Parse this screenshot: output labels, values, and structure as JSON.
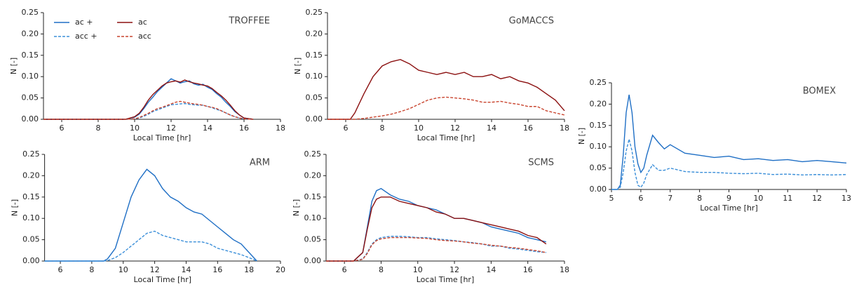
{
  "chart_data": [
    {
      "type": "line",
      "title": "TROFFEE",
      "xlabel": "Local Time [hr]",
      "ylabel": "N [-]",
      "legend": true,
      "xlim": [
        5,
        18
      ],
      "ylim": [
        0,
        0.25
      ],
      "xticks": [
        6,
        8,
        10,
        12,
        14,
        16,
        18
      ],
      "yticks": [
        {
          "value": 0,
          "label": "0.00"
        },
        {
          "value": 0.05,
          "label": "0.05"
        },
        {
          "value": 0.1,
          "label": "0.10"
        },
        {
          "value": 0.15,
          "label": "0.15"
        },
        {
          "value": 0.2,
          "label": "0.20"
        },
        {
          "value": 0.25,
          "label": "0.25"
        }
      ],
      "x": [
        5,
        9.5,
        10,
        10.25,
        10.5,
        10.75,
        11,
        11.25,
        11.5,
        11.75,
        12,
        12.25,
        12.5,
        12.75,
        13,
        13.25,
        13.5,
        13.75,
        14,
        14.25,
        14.5,
        14.75,
        15,
        15.25,
        15.5,
        15.75,
        16,
        16.5
      ],
      "series": [
        {
          "name": "ac +",
          "color": "#1f6fc5",
          "linestyle": "solid",
          "values": [
            0,
            0,
            0.005,
            0.012,
            0.025,
            0.04,
            0.052,
            0.065,
            0.075,
            0.085,
            0.095,
            0.09,
            0.085,
            0.088,
            0.09,
            0.083,
            0.08,
            0.082,
            0.075,
            0.07,
            0.06,
            0.052,
            0.04,
            0.03,
            0.018,
            0.01,
            0.003,
            0
          ]
        },
        {
          "name": "acc +",
          "color": "#3b8fd9",
          "linestyle": "dashed",
          "values": [
            0,
            0,
            0.001,
            0.003,
            0.007,
            0.012,
            0.018,
            0.022,
            0.026,
            0.03,
            0.034,
            0.035,
            0.036,
            0.037,
            0.035,
            0.034,
            0.033,
            0.033,
            0.03,
            0.027,
            0.023,
            0.02,
            0.015,
            0.01,
            0.006,
            0.003,
            0.001,
            0
          ]
        },
        {
          "name": "ac",
          "color": "#8b1010",
          "linestyle": "solid",
          "values": [
            0,
            0,
            0.006,
            0.014,
            0.028,
            0.045,
            0.058,
            0.068,
            0.078,
            0.085,
            0.088,
            0.09,
            0.087,
            0.092,
            0.088,
            0.085,
            0.083,
            0.08,
            0.078,
            0.072,
            0.063,
            0.055,
            0.045,
            0.033,
            0.02,
            0.01,
            0.003,
            0
          ]
        },
        {
          "name": "acc",
          "color": "#c9452f",
          "linestyle": "dashed",
          "values": [
            0,
            0,
            0.001,
            0.004,
            0.009,
            0.014,
            0.02,
            0.025,
            0.028,
            0.032,
            0.036,
            0.04,
            0.042,
            0.04,
            0.038,
            0.036,
            0.035,
            0.033,
            0.03,
            0.028,
            0.025,
            0.02,
            0.015,
            0.01,
            0.006,
            0.003,
            0.001,
            0
          ]
        }
      ]
    },
    {
      "type": "line",
      "title": "GoMACCS",
      "xlabel": "Local Time [hr]",
      "ylabel": "N [-]",
      "legend": false,
      "xlim": [
        5,
        18
      ],
      "ylim": [
        0,
        0.25
      ],
      "xticks": [
        6,
        8,
        10,
        12,
        14,
        16,
        18
      ],
      "yticks": [
        {
          "value": 0,
          "label": "0.00"
        },
        {
          "value": 0.05,
          "label": "0.05"
        },
        {
          "value": 0.1,
          "label": "0.10"
        },
        {
          "value": 0.15,
          "label": "0.15"
        },
        {
          "value": 0.2,
          "label": "0.20"
        },
        {
          "value": 0.25,
          "label": "0.25"
        }
      ],
      "x": [
        5,
        6.25,
        6.5,
        7,
        7.5,
        8,
        8.5,
        9,
        9.5,
        10,
        10.5,
        11,
        11.5,
        12,
        12.5,
        13,
        13.5,
        14,
        14.5,
        15,
        15.5,
        16,
        16.5,
        17,
        17.5,
        18
      ],
      "series": [
        {
          "name": "ac",
          "color": "#8b1010",
          "linestyle": "solid",
          "values": [
            0,
            0,
            0.015,
            0.06,
            0.1,
            0.125,
            0.135,
            0.14,
            0.13,
            0.115,
            0.11,
            0.105,
            0.11,
            0.105,
            0.11,
            0.1,
            0.1,
            0.105,
            0.095,
            0.1,
            0.09,
            0.085,
            0.075,
            0.06,
            0.045,
            0.02
          ]
        },
        {
          "name": "acc",
          "color": "#c9452f",
          "linestyle": "dashed",
          "values": [
            0,
            0,
            0,
            0.002,
            0.005,
            0.008,
            0.012,
            0.018,
            0.025,
            0.035,
            0.045,
            0.05,
            0.052,
            0.05,
            0.048,
            0.045,
            0.04,
            0.04,
            0.042,
            0.038,
            0.035,
            0.03,
            0.03,
            0.02,
            0.015,
            0.01
          ]
        }
      ]
    },
    {
      "type": "line",
      "title": "BOMEX",
      "xlabel": "Local Time [hr]",
      "ylabel": "N [-]",
      "legend": false,
      "xlim": [
        5,
        13
      ],
      "ylim": [
        0,
        0.25
      ],
      "xticks": [
        5,
        6,
        7,
        8,
        9,
        10,
        11,
        12,
        13
      ],
      "yticks": [
        {
          "value": 0,
          "label": "0.00"
        },
        {
          "value": 0.05,
          "label": "0.05"
        },
        {
          "value": 0.1,
          "label": "0.10"
        },
        {
          "value": 0.15,
          "label": "0.15"
        },
        {
          "value": 0.2,
          "label": "0.20"
        },
        {
          "value": 0.25,
          "label": "0.25"
        }
      ],
      "x": [
        5,
        5.2,
        5.3,
        5.4,
        5.5,
        5.6,
        5.7,
        5.8,
        5.9,
        6,
        6.1,
        6.2,
        6.4,
        6.6,
        6.8,
        7,
        7.5,
        8,
        8.5,
        9,
        9.5,
        10,
        10.5,
        11,
        11.5,
        12,
        12.5,
        13
      ],
      "series": [
        {
          "name": "ac +",
          "color": "#1f6fc5",
          "linestyle": "solid",
          "values": [
            0,
            0,
            0.01,
            0.08,
            0.18,
            0.222,
            0.18,
            0.1,
            0.06,
            0.04,
            0.05,
            0.08,
            0.127,
            0.11,
            0.095,
            0.105,
            0.085,
            0.08,
            0.075,
            0.078,
            0.07,
            0.072,
            0.068,
            0.07,
            0.065,
            0.068,
            0.065,
            0.062
          ]
        },
        {
          "name": "acc +",
          "color": "#3b8fd9",
          "linestyle": "dashed",
          "values": [
            0,
            0,
            0.005,
            0.04,
            0.09,
            0.118,
            0.09,
            0.04,
            0.01,
            0.005,
            0.015,
            0.035,
            0.058,
            0.045,
            0.045,
            0.05,
            0.042,
            0.04,
            0.04,
            0.038,
            0.037,
            0.038,
            0.035,
            0.036,
            0.034,
            0.035,
            0.034,
            0.035
          ]
        }
      ]
    },
    {
      "type": "line",
      "title": "ARM",
      "xlabel": "Local Time [hr]",
      "ylabel": "N [-]",
      "legend": false,
      "xlim": [
        5,
        20
      ],
      "ylim": [
        0,
        0.25
      ],
      "xticks": [
        6,
        8,
        10,
        12,
        14,
        16,
        18,
        20
      ],
      "yticks": [
        {
          "value": 0,
          "label": "0.00"
        },
        {
          "value": 0.05,
          "label": "0.05"
        },
        {
          "value": 0.1,
          "label": "0.10"
        },
        {
          "value": 0.15,
          "label": "0.15"
        },
        {
          "value": 0.2,
          "label": "0.20"
        },
        {
          "value": 0.25,
          "label": "0.25"
        }
      ],
      "x": [
        5,
        8.75,
        9,
        9.5,
        10,
        10.5,
        11,
        11.5,
        12,
        12.5,
        13,
        13.5,
        14,
        14.5,
        15,
        15.5,
        16,
        16.5,
        17,
        17.5,
        18,
        18.5
      ],
      "series": [
        {
          "name": "ac +",
          "color": "#1f6fc5",
          "linestyle": "solid",
          "values": [
            0,
            0,
            0.005,
            0.03,
            0.09,
            0.15,
            0.19,
            0.215,
            0.2,
            0.17,
            0.15,
            0.14,
            0.125,
            0.115,
            0.11,
            0.095,
            0.08,
            0.065,
            0.05,
            0.04,
            0.02,
            0
          ]
        },
        {
          "name": "acc +",
          "color": "#3b8fd9",
          "linestyle": "dashed",
          "values": [
            0,
            0,
            0.001,
            0.008,
            0.02,
            0.035,
            0.05,
            0.065,
            0.07,
            0.06,
            0.055,
            0.05,
            0.045,
            0.045,
            0.045,
            0.04,
            0.03,
            0.025,
            0.02,
            0.015,
            0.008,
            0
          ]
        }
      ]
    },
    {
      "type": "line",
      "title": "SCMS",
      "xlabel": "Local Time [hr]",
      "ylabel": "N [-]",
      "legend": false,
      "xlim": [
        5,
        18
      ],
      "ylim": [
        0,
        0.25
      ],
      "xticks": [
        6,
        8,
        10,
        12,
        14,
        16,
        18
      ],
      "yticks": [
        {
          "value": 0,
          "label": "0.00"
        },
        {
          "value": 0.05,
          "label": "0.05"
        },
        {
          "value": 0.1,
          "label": "0.10"
        },
        {
          "value": 0.15,
          "label": "0.15"
        },
        {
          "value": 0.2,
          "label": "0.20"
        },
        {
          "value": 0.25,
          "label": "0.25"
        }
      ],
      "x": [
        5,
        6.5,
        7,
        7.25,
        7.5,
        7.75,
        8,
        8.5,
        9,
        9.5,
        10,
        10.5,
        11,
        11.5,
        12,
        12.5,
        13,
        13.5,
        14,
        14.5,
        15,
        15.5,
        16,
        16.5,
        17
      ],
      "series": [
        {
          "name": "ac +",
          "color": "#1f6fc5",
          "linestyle": "solid",
          "values": [
            0,
            0,
            0.02,
            0.08,
            0.14,
            0.165,
            0.17,
            0.155,
            0.145,
            0.14,
            0.13,
            0.125,
            0.12,
            0.11,
            0.1,
            0.1,
            0.095,
            0.09,
            0.08,
            0.075,
            0.07,
            0.065,
            0.055,
            0.05,
            0.045
          ]
        },
        {
          "name": "acc +",
          "color": "#3b8fd9",
          "linestyle": "dashed",
          "values": [
            0,
            0,
            0.005,
            0.02,
            0.04,
            0.05,
            0.055,
            0.058,
            0.058,
            0.057,
            0.055,
            0.055,
            0.052,
            0.05,
            0.048,
            0.045,
            0.043,
            0.04,
            0.035,
            0.035,
            0.03,
            0.028,
            0.025,
            0.022,
            0.02
          ]
        },
        {
          "name": "ac",
          "color": "#8b1010",
          "linestyle": "solid",
          "values": [
            0,
            0,
            0.02,
            0.075,
            0.125,
            0.145,
            0.15,
            0.15,
            0.14,
            0.135,
            0.13,
            0.125,
            0.115,
            0.11,
            0.1,
            0.1,
            0.095,
            0.09,
            0.085,
            0.08,
            0.075,
            0.07,
            0.06,
            0.055,
            0.04
          ]
        },
        {
          "name": "acc",
          "color": "#c9452f",
          "linestyle": "dashed",
          "values": [
            0,
            0,
            0.004,
            0.018,
            0.038,
            0.048,
            0.052,
            0.055,
            0.055,
            0.055,
            0.054,
            0.053,
            0.05,
            0.048,
            0.047,
            0.045,
            0.042,
            0.04,
            0.037,
            0.035,
            0.032,
            0.03,
            0.027,
            0.024,
            0.02
          ]
        }
      ]
    }
  ]
}
